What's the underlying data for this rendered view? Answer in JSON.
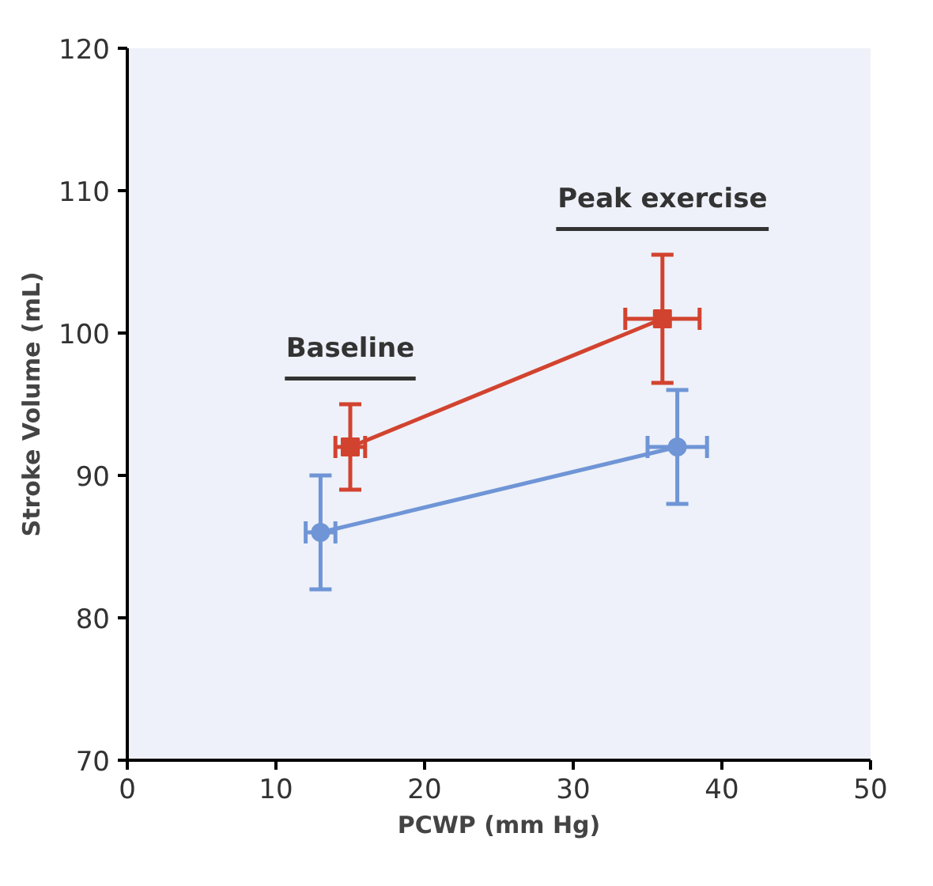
{
  "chart_data": {
    "type": "line",
    "xlabel": "PCWP (mm Hg)",
    "ylabel": "Stroke Volume (mL)",
    "xlim": [
      0,
      50
    ],
    "xticks": [
      0,
      10,
      20,
      30,
      40,
      50
    ],
    "ylim": [
      70,
      120
    ],
    "yticks": [
      70,
      80,
      90,
      100,
      110,
      120
    ],
    "grid": false,
    "series": [
      {
        "color": "#d2432f",
        "marker": "square",
        "x": [
          15,
          36
        ],
        "values": [
          92,
          101
        ],
        "errors": [
          3,
          4.5
        ],
        "xerrors": [
          1,
          2.5
        ]
      },
      {
        "color": "#6f95d6",
        "marker": "circle",
        "x": [
          13,
          37
        ],
        "values": [
          86,
          92
        ],
        "errors": [
          4,
          4
        ],
        "xerrors": [
          1,
          2
        ]
      }
    ],
    "annotations": [
      "Baseline",
      "Peak exercise"
    ]
  }
}
